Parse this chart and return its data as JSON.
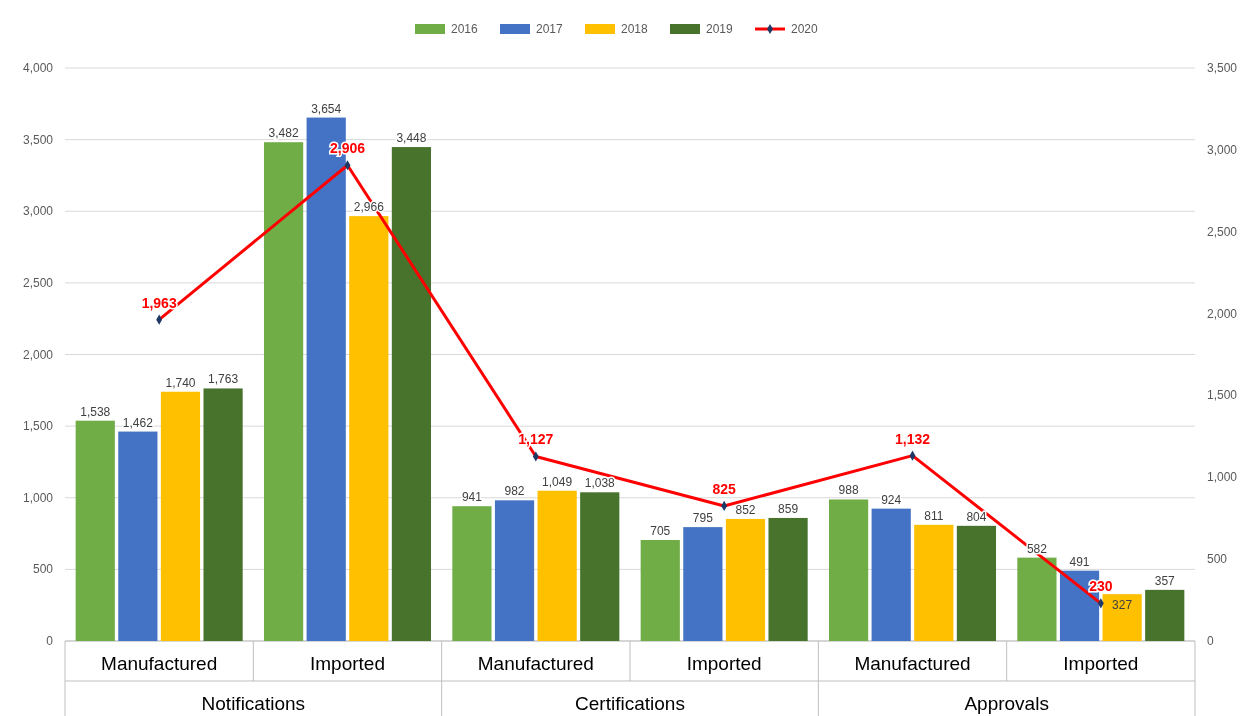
{
  "chart_data": {
    "type": "bar",
    "categories": [
      "Manufactured",
      "Imported",
      "Manufactured",
      "Imported",
      "Manufactured",
      "Imported"
    ],
    "annotations": [
      "Notifications",
      "Certifications",
      "Approvals"
    ],
    "series": [
      {
        "name": "2016",
        "color": "#70ad47",
        "values": [
          1538,
          3482,
          941,
          705,
          988,
          582
        ],
        "value_labels": [
          "1,538",
          "3,482",
          "941",
          "705",
          "988",
          "582"
        ]
      },
      {
        "name": "2017",
        "color": "#4472c4",
        "values": [
          1462,
          3654,
          982,
          795,
          924,
          491
        ],
        "value_labels": [
          "1,462",
          "3,654",
          "982",
          "795",
          "924",
          "491"
        ]
      },
      {
        "name": "2018",
        "color": "#ffc000",
        "values": [
          1740,
          2966,
          1049,
          852,
          811,
          327
        ],
        "value_labels": [
          "1,740",
          "2,966",
          "1,049",
          "852",
          "811",
          "327"
        ]
      },
      {
        "name": "2019",
        "color": "#48732c",
        "values": [
          1763,
          3448,
          1038,
          859,
          804,
          357
        ],
        "value_labels": [
          "1,763",
          "3,448",
          "1,038",
          "859",
          "804",
          "357"
        ]
      },
      {
        "name": "2020",
        "type": "line",
        "axis": "y2",
        "color": "#ff0000",
        "marker": "diamond",
        "values": [
          1963,
          2906,
          1127,
          825,
          1132,
          230
        ],
        "value_labels": [
          "1,963",
          "2,906",
          "1,127",
          "825",
          "1,132",
          "230"
        ]
      }
    ],
    "ylim": [
      0,
      4000
    ],
    "yticks": [
      {
        "value": 0,
        "label": "0"
      },
      {
        "value": 500,
        "label": "500"
      },
      {
        "value": 1000,
        "label": "1,000"
      },
      {
        "value": 1500,
        "label": "1,500"
      },
      {
        "value": 2000,
        "label": "2,000"
      },
      {
        "value": 2500,
        "label": "2,500"
      },
      {
        "value": 3000,
        "label": "3,000"
      },
      {
        "value": 3500,
        "label": "3,500"
      },
      {
        "value": 4000,
        "label": "4,000"
      }
    ],
    "y2lim": [
      0,
      3500
    ],
    "y2ticks": [
      {
        "value": 0,
        "label": "0"
      },
      {
        "value": 500,
        "label": "500"
      },
      {
        "value": 1000,
        "label": "1,000"
      },
      {
        "value": 1500,
        "label": "1,500"
      },
      {
        "value": 2000,
        "label": "2,000"
      },
      {
        "value": 2500,
        "label": "2,500"
      },
      {
        "value": 3000,
        "label": "3,000"
      },
      {
        "value": 3500,
        "label": "3,500"
      }
    ],
    "grid": "y",
    "legend": "top"
  }
}
